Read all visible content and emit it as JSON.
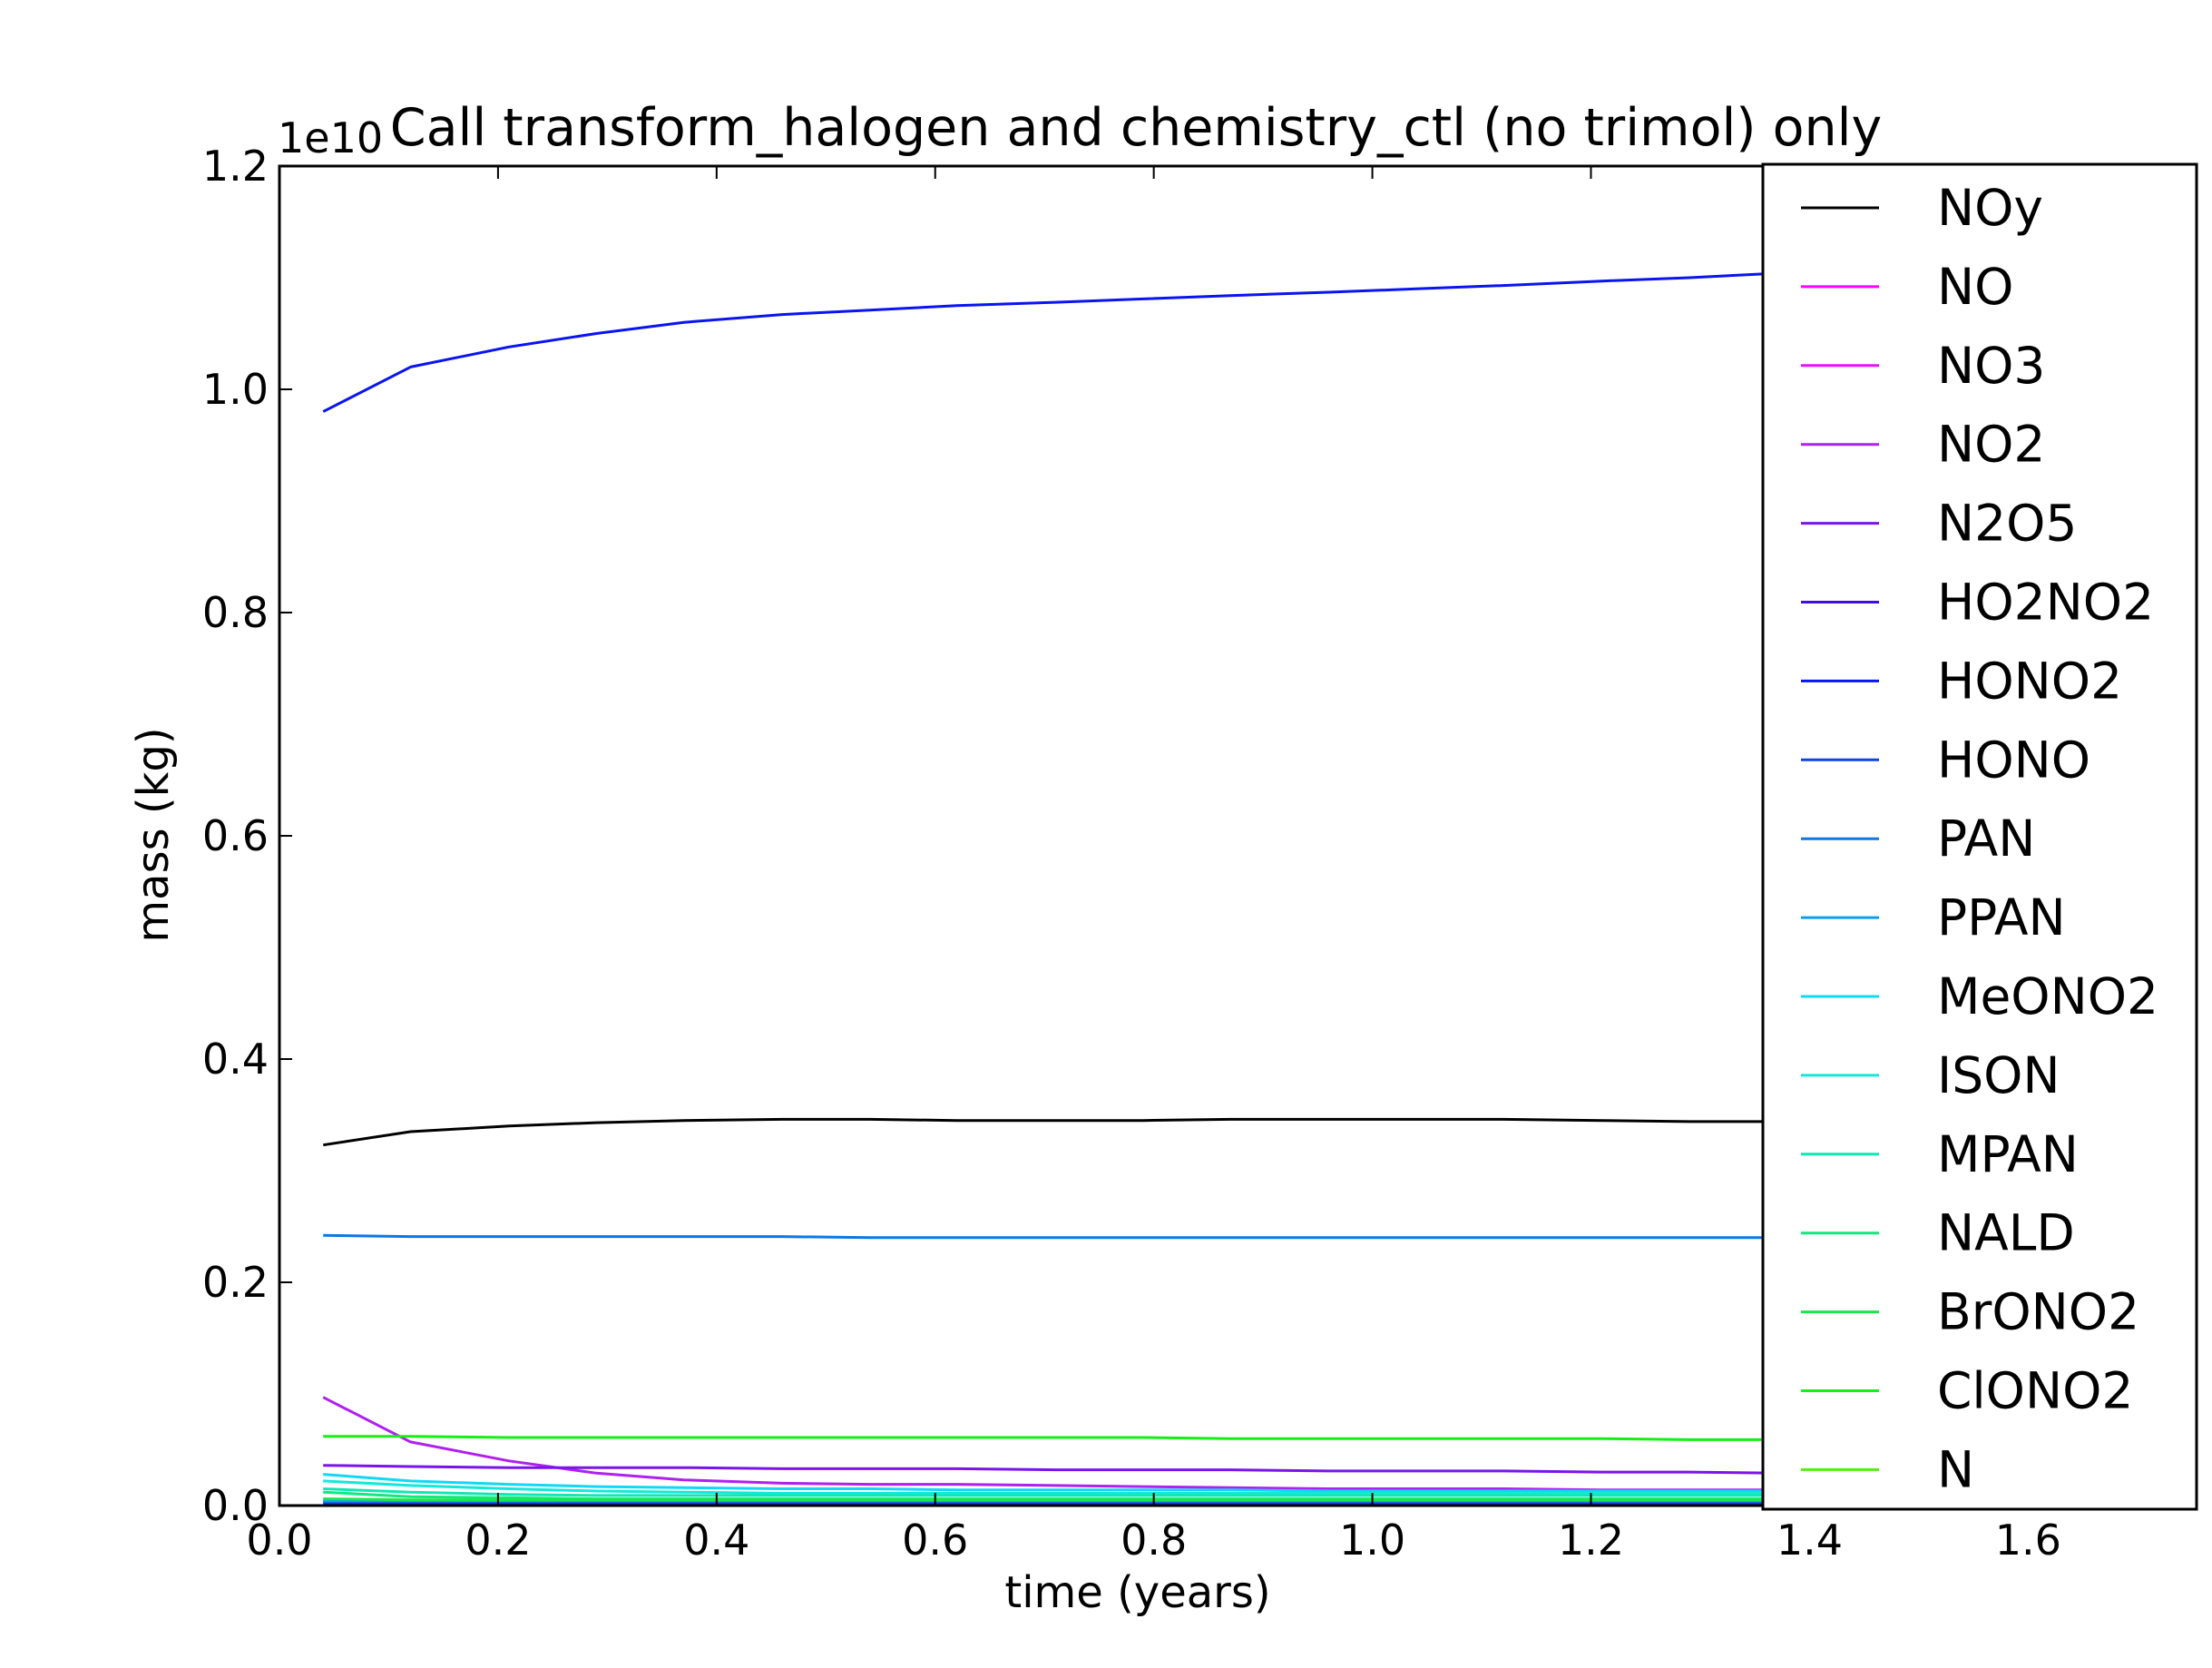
{
  "chart_data": {
    "type": "line",
    "title": "Call transform_halogen and chemistry_ctl (no trimol) only",
    "xlabel": "time (years)",
    "ylabel": "mass (kg)",
    "y_offset_label": "1e10",
    "xlim": [
      0.0,
      1.75
    ],
    "ylim": [
      0.0,
      1.2
    ],
    "xticks": [
      "0.0",
      "0.2",
      "0.4",
      "0.6",
      "0.8",
      "1.0",
      "1.2",
      "1.4",
      "1.6"
    ],
    "yticks": [
      "0.0",
      "0.2",
      "0.4",
      "0.6",
      "0.8",
      "1.0",
      "1.2"
    ],
    "grid": false,
    "legend_position": "upper-right",
    "x": [
      0.04,
      0.12,
      0.21,
      0.29,
      0.37,
      0.46,
      0.54,
      0.62,
      0.71,
      0.79,
      0.87,
      0.96,
      1.04,
      1.12,
      1.21,
      1.29,
      1.37
    ],
    "series": [
      {
        "name": "NOy",
        "color": "#000000",
        "values": [
          0.323,
          0.335,
          0.34,
          0.343,
          0.345,
          0.346,
          0.346,
          0.345,
          0.345,
          0.345,
          0.346,
          0.346,
          0.346,
          0.346,
          0.345,
          0.344,
          0.344
        ]
      },
      {
        "name": "NO",
        "color": "#ff00ff",
        "values": [
          0.0,
          0.0,
          0.0,
          0.0,
          0.0,
          0.0,
          0.0,
          0.0,
          0.0,
          0.0,
          0.0,
          0.0,
          0.0,
          0.0,
          0.0,
          0.0,
          0.0
        ]
      },
      {
        "name": "NO3",
        "color": "#e810ff",
        "values": [
          0.002,
          0.002,
          0.002,
          0.002,
          0.002,
          0.002,
          0.002,
          0.002,
          0.002,
          0.002,
          0.002,
          0.002,
          0.002,
          0.002,
          0.002,
          0.002,
          0.002
        ]
      },
      {
        "name": "NO2",
        "color": "#b020f0",
        "values": [
          0.097,
          0.057,
          0.04,
          0.029,
          0.023,
          0.02,
          0.019,
          0.019,
          0.018,
          0.017,
          0.016,
          0.015,
          0.015,
          0.015,
          0.014,
          0.014,
          0.014
        ]
      },
      {
        "name": "N2O5",
        "color": "#7a14ea",
        "values": [
          0.036,
          0.035,
          0.034,
          0.034,
          0.034,
          0.033,
          0.033,
          0.033,
          0.032,
          0.032,
          0.032,
          0.031,
          0.031,
          0.031,
          0.03,
          0.03,
          0.029
        ]
      },
      {
        "name": "HO2NO2",
        "color": "#3d0ee0",
        "values": [
          0.003,
          0.003,
          0.003,
          0.003,
          0.003,
          0.003,
          0.003,
          0.003,
          0.003,
          0.003,
          0.003,
          0.003,
          0.003,
          0.003,
          0.003,
          0.003,
          0.003
        ]
      },
      {
        "name": "HONO2",
        "color": "#0a14f0",
        "values": [
          0.98,
          1.02,
          1.038,
          1.05,
          1.06,
          1.067,
          1.071,
          1.075,
          1.078,
          1.081,
          1.084,
          1.087,
          1.09,
          1.093,
          1.097,
          1.1,
          1.104
        ]
      },
      {
        "name": "HONO",
        "color": "#0a46e6",
        "values": [
          0.001,
          0.001,
          0.001,
          0.001,
          0.001,
          0.001,
          0.001,
          0.001,
          0.001,
          0.001,
          0.001,
          0.001,
          0.001,
          0.001,
          0.001,
          0.001,
          0.001
        ]
      },
      {
        "name": "PAN",
        "color": "#0a78e6",
        "values": [
          0.242,
          0.241,
          0.241,
          0.241,
          0.241,
          0.241,
          0.24,
          0.24,
          0.24,
          0.24,
          0.24,
          0.24,
          0.24,
          0.24,
          0.24,
          0.24,
          0.24
        ]
      },
      {
        "name": "PPAN",
        "color": "#0aa0f0",
        "values": [
          0.004,
          0.004,
          0.004,
          0.004,
          0.004,
          0.004,
          0.004,
          0.004,
          0.004,
          0.004,
          0.004,
          0.004,
          0.004,
          0.004,
          0.004,
          0.004,
          0.004
        ]
      },
      {
        "name": "MeONO2",
        "color": "#10d8f8",
        "values": [
          0.028,
          0.022,
          0.019,
          0.017,
          0.016,
          0.015,
          0.015,
          0.014,
          0.014,
          0.014,
          0.014,
          0.013,
          0.013,
          0.013,
          0.013,
          0.013,
          0.013
        ]
      },
      {
        "name": "ISON",
        "color": "#14e8d8",
        "values": [
          0.022,
          0.018,
          0.015,
          0.013,
          0.012,
          0.011,
          0.011,
          0.011,
          0.011,
          0.011,
          0.011,
          0.011,
          0.011,
          0.011,
          0.011,
          0.011,
          0.011
        ]
      },
      {
        "name": "MPAN",
        "color": "#10e8b4",
        "values": [
          0.015,
          0.012,
          0.01,
          0.009,
          0.009,
          0.009,
          0.009,
          0.009,
          0.009,
          0.009,
          0.009,
          0.009,
          0.009,
          0.009,
          0.009,
          0.009,
          0.009
        ]
      },
      {
        "name": "NALD",
        "color": "#10e880",
        "values": [
          0.012,
          0.008,
          0.007,
          0.006,
          0.006,
          0.006,
          0.006,
          0.006,
          0.006,
          0.006,
          0.006,
          0.006,
          0.006,
          0.006,
          0.006,
          0.006,
          0.006
        ]
      },
      {
        "name": "BrONO2",
        "color": "#18e848",
        "values": [
          0.006,
          0.005,
          0.005,
          0.005,
          0.005,
          0.005,
          0.005,
          0.005,
          0.005,
          0.005,
          0.005,
          0.005,
          0.005,
          0.005,
          0.005,
          0.005,
          0.005
        ]
      },
      {
        "name": "ClONO2",
        "color": "#14f014",
        "values": [
          0.062,
          0.062,
          0.061,
          0.061,
          0.061,
          0.061,
          0.061,
          0.061,
          0.061,
          0.061,
          0.06,
          0.06,
          0.06,
          0.06,
          0.06,
          0.059,
          0.059
        ]
      },
      {
        "name": "N",
        "color": "#50f010",
        "values": [
          0.0,
          0.0,
          0.0,
          0.0,
          0.0,
          0.0,
          0.0,
          0.0,
          0.0,
          0.0,
          0.0,
          0.0,
          0.0,
          0.0,
          0.0,
          0.0,
          0.0
        ]
      }
    ]
  }
}
